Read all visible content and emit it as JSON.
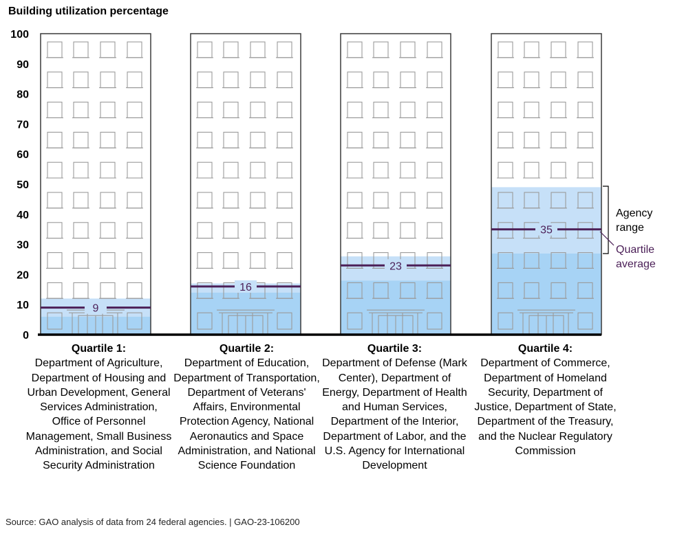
{
  "chart_data": {
    "type": "range-bar",
    "title": "Building utilization percentage",
    "ylim": [
      0,
      100
    ],
    "yticks": [
      0,
      10,
      20,
      30,
      40,
      50,
      60,
      70,
      80,
      90,
      100
    ],
    "categories": [
      {
        "label": "Quartile 1:",
        "agencies": "Department of Agriculture, Department of Housing and Urban Development, General Services Administration, Office of Personnel Management, Small Business Administration, and Social Security Administration",
        "range_low": 6,
        "range_high": 12,
        "average": 9
      },
      {
        "label": "Quartile 2:",
        "agencies": "Department of Education, Department of Transportation, Department of Veterans' Affairs, Environmental Protection Agency, National Aeronautics and Space Administration, and National Science Foundation",
        "range_low": 14,
        "range_high": 17,
        "average": 16
      },
      {
        "label": "Quartile 3:",
        "agencies": "Department of Defense (Mark Center), Department of Energy, Department of Health and Human Services, Department of the Interior, Department of Labor, and the U.S. Agency for International Development",
        "range_low": 18,
        "range_high": 26,
        "average": 23
      },
      {
        "label": "Quartile 4:",
        "agencies": "Department of Commerce, Department of Homeland Security, Department of Justice, Department of State, Department of the Treasury, and the Nuclear Regulatory Commission",
        "range_low": 27,
        "range_high": 49,
        "average": 35
      }
    ],
    "legend": {
      "range_label": "Agency range",
      "average_label": "Quartile average"
    },
    "colors": {
      "range_fill": "#c6e0f8",
      "low_fill": "#a7d3f5",
      "average_line": "#4b1f57",
      "outline": "#3a3a3a",
      "window": "#9a9a9a"
    }
  },
  "source": "Source: GAO analysis of data from 24 federal agencies.  |  GAO-23-106200"
}
